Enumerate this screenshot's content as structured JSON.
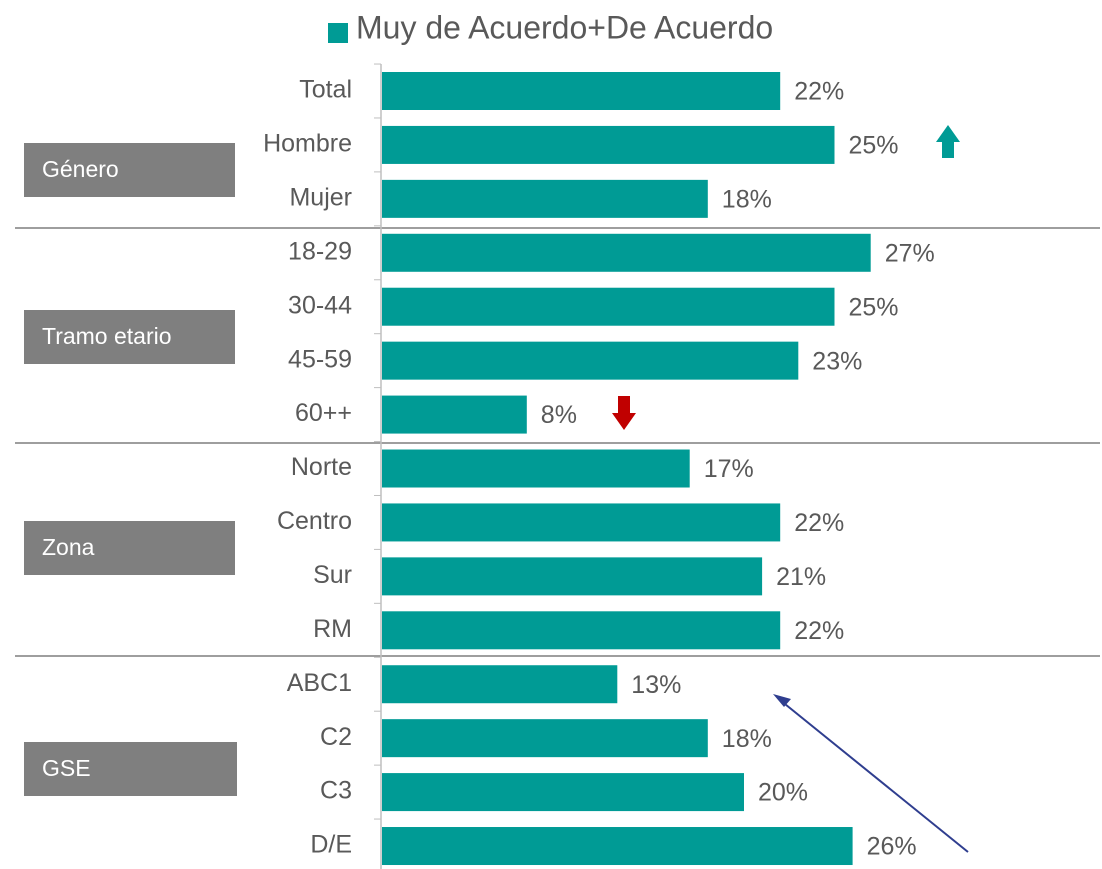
{
  "chart_data": {
    "type": "bar",
    "orientation": "horizontal",
    "legend": "Muy de Acuerdo+De Acuerdo",
    "color": "#009b95",
    "categories": [
      "Total",
      "Hombre",
      "Mujer",
      "18-29",
      "30-44",
      "45-59",
      "60++",
      "Norte",
      "Centro",
      "Sur",
      "RM",
      "ABC1",
      "C2",
      "C3",
      "D/E"
    ],
    "values": [
      22,
      25,
      18,
      27,
      25,
      23,
      8,
      17,
      22,
      21,
      22,
      13,
      18,
      20,
      26
    ],
    "value_labels": [
      "22%",
      "25%",
      "18%",
      "27%",
      "25%",
      "23%",
      "8%",
      "17%",
      "22%",
      "21%",
      "22%",
      "13%",
      "18%",
      "20%",
      "26%"
    ],
    "groups": [
      "Género",
      "Tramo etario",
      "Zona",
      "GSE"
    ],
    "xlim": [
      0,
      30
    ]
  }
}
